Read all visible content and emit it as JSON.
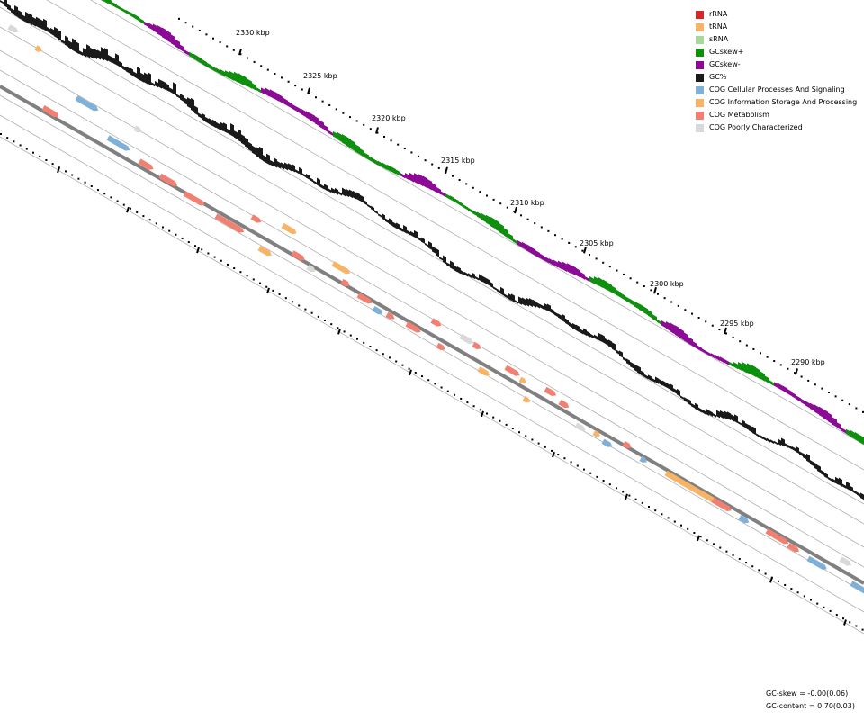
{
  "legend": [
    {
      "label": "rRNA",
      "color": "#d62728"
    },
    {
      "label": "tRNA",
      "color": "#f7b366"
    },
    {
      "label": "sRNA",
      "color": "#a8d99a"
    },
    {
      "label": "GCskew+",
      "color": "#0e8f0e"
    },
    {
      "label": "GCskew-",
      "color": "#8b0a96"
    },
    {
      "label": "GC%",
      "color": "#1a1a1a"
    },
    {
      "label": "COG Cellular Processes And Signaling",
      "color": "#7fb0d8"
    },
    {
      "label": "COG Information Storage And Processing",
      "color": "#f7b366"
    },
    {
      "label": "COG Metabolism",
      "color": "#f28072"
    },
    {
      "label": "COG Poorly Characterized",
      "color": "#d9d9d9"
    }
  ],
  "scale": {
    "unit": "kbp",
    "ticks": [
      {
        "label": "2330 kbp"
      },
      {
        "label": "2325 kbp"
      },
      {
        "label": "2320 kbp"
      },
      {
        "label": "2315 kbp"
      },
      {
        "label": "2310 kbp"
      },
      {
        "label": "2305 kbp"
      },
      {
        "label": "2300 kbp"
      },
      {
        "label": "2295 kbp"
      },
      {
        "label": "2290 kbp"
      }
    ]
  },
  "stats": {
    "gc_skew": "GC-skew = -0.00(0.06)",
    "gc_content": "GC-content = 0.70(0.03)"
  },
  "colors": {
    "backbone": "#808080",
    "ring_line": "#b0b0b0",
    "gc_content": "#1a1a1a",
    "gc_skew_pos": "#0e8f0e",
    "gc_skew_neg": "#8b0a96"
  }
}
